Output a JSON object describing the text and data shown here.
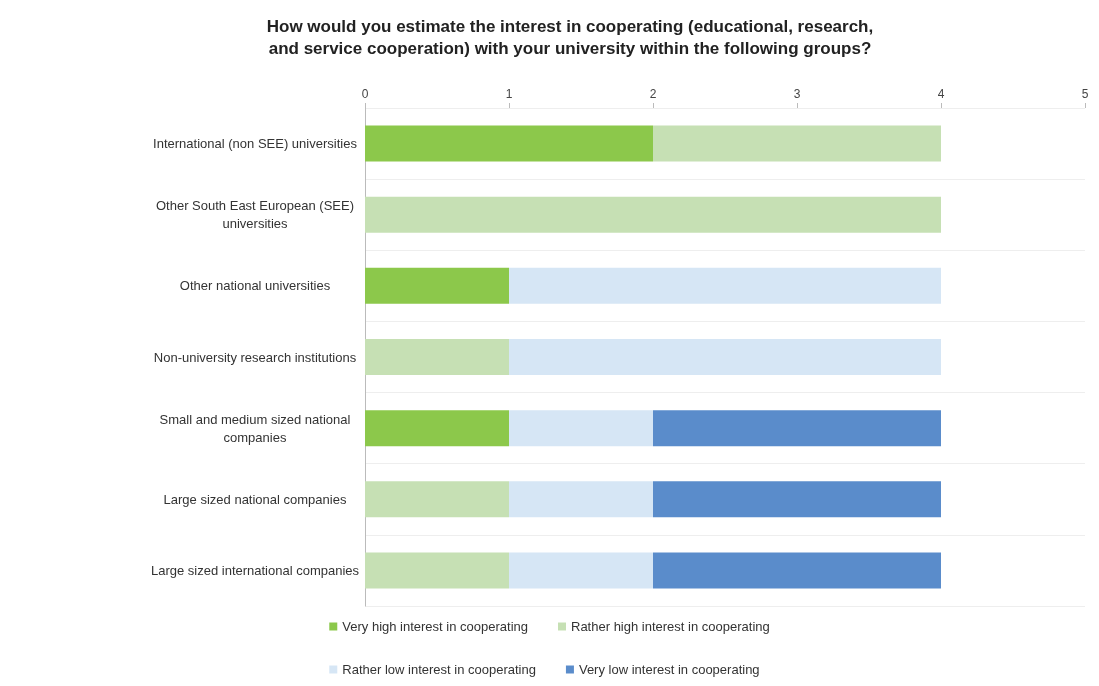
{
  "chart_data": {
    "type": "bar",
    "title": "How would you estimate the interest in cooperating (educational, research,\nand service cooperation) with your university within the following groups?",
    "orientation": "horizontal",
    "stacked": true,
    "categories": [
      "International (non SEE) universities",
      "Other South East European (SEE)\nuniversities",
      "Other national universities",
      "Non-university research institutions",
      "Small and medium sized national\ncompanies",
      "Large sized national companies",
      "Large sized international companies"
    ],
    "series": [
      {
        "name": "Very high interest in cooperating",
        "color": "#8cc84b",
        "values": [
          2,
          0,
          1,
          0,
          1,
          0,
          0
        ]
      },
      {
        "name": "Rather high interest in cooperating",
        "color": "#c6e0b4",
        "values": [
          2,
          4,
          0,
          1,
          0,
          1,
          1
        ]
      },
      {
        "name": "Rather low interest in cooperating",
        "color": "#d6e6f5",
        "values": [
          0,
          0,
          3,
          3,
          1,
          1,
          1
        ]
      },
      {
        "name": "Very low interest in cooperating",
        "color": "#5a8ccb",
        "values": [
          0,
          0,
          0,
          0,
          2,
          2,
          2
        ]
      }
    ],
    "xlim": [
      0,
      5
    ],
    "xticks": [
      0,
      1,
      2,
      3,
      4,
      5
    ],
    "legend": "bottom",
    "grid": false
  }
}
